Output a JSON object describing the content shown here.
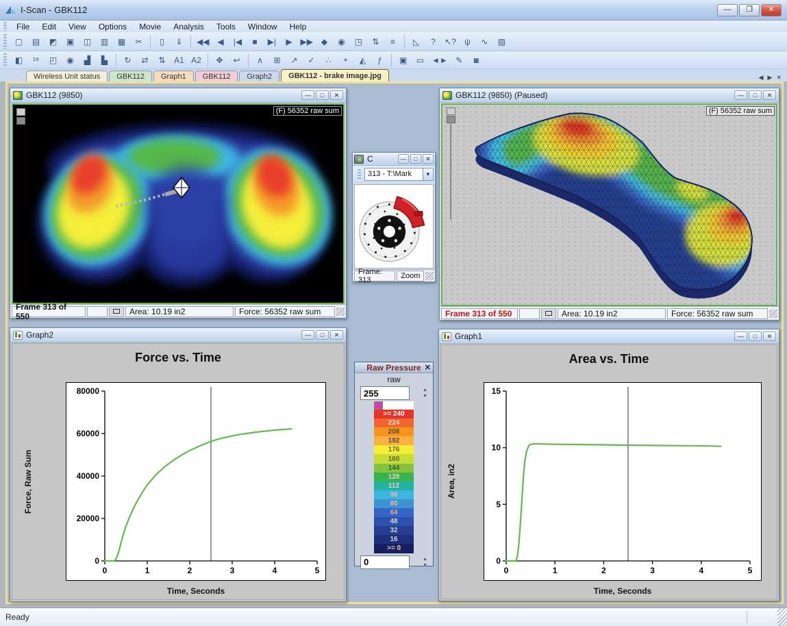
{
  "window": {
    "title": "I-Scan - GBK112"
  },
  "window_controls": {
    "minimize": "—",
    "restore": "❐",
    "maximize": "□",
    "close": "✕"
  },
  "menu": {
    "items": [
      {
        "name": "menu-file",
        "label": "File"
      },
      {
        "name": "menu-edit",
        "label": "Edit"
      },
      {
        "name": "menu-view",
        "label": "View"
      },
      {
        "name": "menu-options",
        "label": "Options"
      },
      {
        "name": "menu-movie",
        "label": "Movie"
      },
      {
        "name": "menu-analysis",
        "label": "Analysis"
      },
      {
        "name": "menu-tools",
        "label": "Tools"
      },
      {
        "name": "menu-window",
        "label": "Window"
      },
      {
        "name": "menu-help",
        "label": "Help"
      }
    ]
  },
  "toolbar1": {
    "icons": [
      {
        "name": "new-file-icon",
        "glyph": "▢"
      },
      {
        "name": "open-file-icon",
        "glyph": "▤"
      },
      {
        "name": "open-map-icon",
        "glyph": "◩"
      },
      {
        "name": "save-icon",
        "glyph": "▣"
      },
      {
        "name": "print-icon",
        "glyph": "◫"
      },
      {
        "name": "print-preview-icon",
        "glyph": "▥"
      },
      {
        "name": "copy-icon",
        "glyph": "▦"
      },
      {
        "name": "edit-movie-icon",
        "glyph": "✂"
      },
      {
        "sep": true
      },
      {
        "name": "column-icon",
        "glyph": "▯"
      },
      {
        "name": "keyboard-icon",
        "glyph": "⇓"
      },
      {
        "sep": true
      },
      {
        "name": "rewind-icon",
        "glyph": "◀◀"
      },
      {
        "name": "step-back-icon",
        "glyph": "◀"
      },
      {
        "name": "first-frame-icon",
        "glyph": "|◀"
      },
      {
        "name": "stop-icon",
        "glyph": "■"
      },
      {
        "name": "last-frame-icon",
        "glyph": "▶|"
      },
      {
        "name": "play-icon",
        "glyph": "▶"
      },
      {
        "name": "fast-forward-icon",
        "glyph": "▶▶"
      },
      {
        "name": "record-icon",
        "glyph": "◆"
      },
      {
        "name": "snapshot-icon",
        "glyph": "◉"
      },
      {
        "name": "pages-icon",
        "glyph": "◳"
      },
      {
        "name": "collapse-icon",
        "glyph": "⇅"
      },
      {
        "name": "log-icon",
        "glyph": "≡"
      },
      {
        "sep": true
      },
      {
        "name": "angle-tool-icon",
        "glyph": "◺"
      },
      {
        "name": "help-icon",
        "glyph": "?"
      },
      {
        "name": "context-help-icon",
        "glyph": "↖?"
      },
      {
        "name": "wireless-icon",
        "glyph": "ψ"
      },
      {
        "name": "calibrate-icon",
        "glyph": "∿"
      },
      {
        "name": "folder-edit-icon",
        "glyph": "▨"
      }
    ]
  },
  "toolbar2": {
    "icons": [
      {
        "name": "contrast-icon",
        "glyph": "◧"
      },
      {
        "name": "digits-icon",
        "glyph": "¹⁸"
      },
      {
        "name": "windows-icon",
        "glyph": "◰"
      },
      {
        "name": "peak-icon",
        "glyph": "◉"
      },
      {
        "name": "graph-a-icon",
        "glyph": "▟"
      },
      {
        "name": "graph-b-icon",
        "glyph": "▙"
      },
      {
        "sep": true
      },
      {
        "name": "rotate-icon",
        "glyph": "↻"
      },
      {
        "name": "swap-h-icon",
        "glyph": "⇄"
      },
      {
        "name": "swap-v-icon",
        "glyph": "⇅"
      },
      {
        "name": "avg1-icon",
        "glyph": "A1"
      },
      {
        "name": "avg2-icon",
        "glyph": "A2"
      },
      {
        "sep": true
      },
      {
        "name": "move-icon",
        "glyph": "✥"
      },
      {
        "name": "rotate-small-icon",
        "glyph": "↩"
      },
      {
        "sep": true
      },
      {
        "name": "peaks-icon",
        "glyph": "∧"
      },
      {
        "name": "grid-icon",
        "glyph": "⊞"
      },
      {
        "name": "chart-up-icon",
        "glyph": "↗"
      },
      {
        "name": "check-chart-icon",
        "glyph": "✓"
      },
      {
        "name": "scatter-icon",
        "glyph": "∴"
      },
      {
        "name": "pick-icon",
        "glyph": "⌖"
      },
      {
        "name": "gauge-icon",
        "glyph": "◭"
      },
      {
        "name": "sum-icon",
        "glyph": "ƒ"
      },
      {
        "sep": true
      },
      {
        "name": "projector-icon",
        "glyph": "▣"
      },
      {
        "name": "video-icon",
        "glyph": "▭"
      },
      {
        "name": "sync-icon",
        "glyph": "◄►"
      },
      {
        "name": "frame-edit-icon",
        "glyph": "✎"
      },
      {
        "name": "camera-icon",
        "glyph": "◙"
      }
    ]
  },
  "tabs": {
    "items": [
      {
        "name": "tab-wireless-unit-status",
        "label": "Wireless Unit status",
        "color": "#f2eed9",
        "active": false
      },
      {
        "name": "tab-gbk112-map",
        "label": "GBK112",
        "color": "#cde6c9",
        "active": false
      },
      {
        "name": "tab-graph1",
        "label": "Graph1",
        "color": "#f6dcbd",
        "active": false
      },
      {
        "name": "tab-gbk112-2",
        "label": "GBK112",
        "color": "#f0cdd6",
        "active": false
      },
      {
        "name": "tab-graph2",
        "label": "Graph2",
        "color": "#ccd8ee",
        "active": false
      },
      {
        "name": "tab-brake-image",
        "label": "GBK112 - brake image.jpg",
        "color": "#f8f1c6",
        "active": true
      }
    ],
    "nav": {
      "prev": "◀",
      "next": "▶",
      "close": "✕"
    }
  },
  "heatmap_window": {
    "title": "GBK112 (9850)",
    "overlay_label": "(F) 56352 raw sum",
    "status": {
      "frame": "Frame 313 of 550",
      "area": "Area: 10.19 in2",
      "force": "Force: 56352 raw sum"
    }
  },
  "surface_window": {
    "title": "GBK112 (9850) (Paused)",
    "overlay_label": "(F) 56352 raw sum",
    "frame_color": "#cc1111",
    "status": {
      "frame": "Frame 313 of 550",
      "area": "Area: 10.19 in2",
      "force": "Force: 56352 raw sum"
    }
  },
  "camera_window": {
    "title": "C",
    "dropdown_value": "313 - T:\\Mark",
    "dropdown_arrow": "▼",
    "frame_label": "Frame: 313",
    "zoom_label": "Zoom"
  },
  "legend": {
    "title": "Raw Pressure",
    "close": "✕",
    "subtitle": "raw",
    "max_value": "255",
    "min_value": "0",
    "spin_up": "▲",
    "spin_down": "▼",
    "rows": [
      {
        "label": ">= 240",
        "color": "#e6342b",
        "text": "#ffffff"
      },
      {
        "label": "224",
        "color": "#f0662c",
        "text": "#e3d9d2"
      },
      {
        "label": "208",
        "color": "#f7941e",
        "text": "#5a4a32"
      },
      {
        "label": "192",
        "color": "#fbb042",
        "text": "#5a4a32"
      },
      {
        "label": "176",
        "color": "#f6ed35",
        "text": "#6a6a3a"
      },
      {
        "label": "160",
        "color": "#c9dc33",
        "text": "#5a663a"
      },
      {
        "label": "144",
        "color": "#84c441",
        "text": "#3c5a2e"
      },
      {
        "label": "128",
        "color": "#35b54c",
        "text": "#efc9bd"
      },
      {
        "label": "112",
        "color": "#25b2a2",
        "text": "#f0cdbd"
      },
      {
        "label": "96",
        "color": "#3cb6e0",
        "text": "#e8b8a8"
      },
      {
        "label": "80",
        "color": "#3f92d2",
        "text": "#e8b8a8"
      },
      {
        "label": "64",
        "color": "#3366c4",
        "text": "#e8a898"
      },
      {
        "label": "48",
        "color": "#2b50ae",
        "text": "#ded6c2"
      },
      {
        "label": "32",
        "color": "#26408f",
        "text": "#cfd4de"
      },
      {
        "label": "16",
        "color": "#1f2f7c",
        "text": "#cfd4de"
      },
      {
        "label": ">= 0",
        "color": "#171f5e",
        "text": "#e8cdb4"
      }
    ]
  },
  "chart_data": [
    {
      "type": "line",
      "window_title": "Graph2",
      "title": "Force vs. Time",
      "xlabel": "Time, Seconds",
      "ylabel": "Force, Raw Sum",
      "xlim": [
        0,
        5
      ],
      "ylim": [
        0,
        80000
      ],
      "xticks": [
        0,
        1,
        2,
        3,
        4,
        5
      ],
      "yticks": [
        0,
        20000,
        40000,
        60000,
        80000
      ],
      "cursor_x": 2.5,
      "line_color": "#62b84e",
      "grid": false,
      "legend_position": "none",
      "x": [
        0,
        0.22,
        0.25,
        0.3,
        0.35,
        0.4,
        0.5,
        0.6,
        0.7,
        0.8,
        0.9,
        1.0,
        1.2,
        1.4,
        1.6,
        1.8,
        2.0,
        2.25,
        2.5,
        2.75,
        3.0,
        3.25,
        3.5,
        3.75,
        4.0,
        4.2,
        4.4
      ],
      "y": [
        0,
        0,
        500,
        2500,
        6000,
        10000,
        16500,
        21500,
        25800,
        29500,
        32800,
        35800,
        40500,
        44200,
        47200,
        49800,
        52000,
        54300,
        56300,
        57800,
        58900,
        59800,
        60500,
        61100,
        61600,
        61900,
        62200
      ]
    },
    {
      "type": "line",
      "window_title": "Graph1",
      "title": "Area vs. Time",
      "xlabel": "Time, Seconds",
      "ylabel": "Area, in2",
      "xlim": [
        0,
        5
      ],
      "ylim": [
        0,
        15
      ],
      "xticks": [
        0,
        1,
        2,
        3,
        4,
        5
      ],
      "yticks": [
        0,
        5,
        10,
        15
      ],
      "cursor_x": 2.5,
      "line_color": "#62b84e",
      "grid": false,
      "legend_position": "none",
      "x": [
        0,
        0.2,
        0.23,
        0.26,
        0.29,
        0.32,
        0.35,
        0.38,
        0.42,
        0.46,
        0.5,
        0.6,
        0.8,
        1.0,
        1.5,
        2.0,
        2.5,
        3.0,
        3.5,
        4.0,
        4.2,
        4.4
      ],
      "y": [
        0,
        0,
        0.4,
        1.5,
        3.2,
        5.2,
        7.2,
        8.8,
        9.7,
        10.15,
        10.3,
        10.35,
        10.32,
        10.3,
        10.28,
        10.25,
        10.22,
        10.2,
        10.18,
        10.16,
        10.15,
        10.12
      ]
    }
  ],
  "statusbar": {
    "ready": "Ready"
  }
}
